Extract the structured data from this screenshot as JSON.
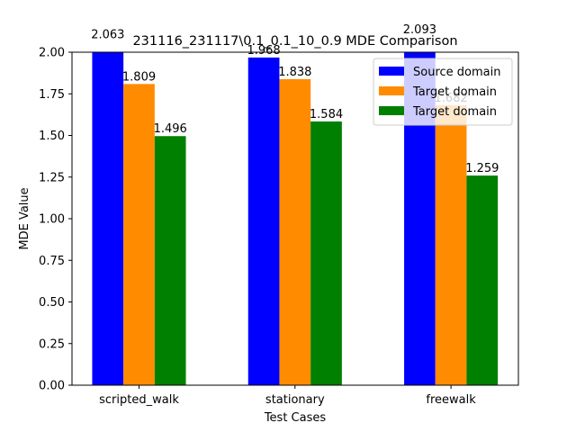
{
  "chart_data": {
    "type": "bar",
    "title": "231116_231117\\0.1_0.1_10_0.9 MDE Comparison",
    "xlabel": "Test Cases",
    "ylabel": "MDE Value",
    "categories": [
      "scripted_walk",
      "stationary",
      "freewalk"
    ],
    "series": [
      {
        "name": "Source domain",
        "color": "#0000ff",
        "values": [
          2.063,
          1.968,
          2.093
        ],
        "labels": [
          "2.063",
          "1.968",
          "2.093"
        ]
      },
      {
        "name": "Target domain",
        "color": "#ff8c00",
        "values": [
          1.809,
          1.838,
          1.682
        ],
        "labels": [
          "1.809",
          "1.838",
          "1.682"
        ]
      },
      {
        "name": "Target domain",
        "color": "#008000",
        "values": [
          1.496,
          1.584,
          1.259
        ],
        "labels": [
          "1.496",
          "1.584",
          "1.259"
        ]
      }
    ],
    "ylim": [
      0,
      2.0
    ],
    "yticks": [
      "0.00",
      "0.25",
      "0.50",
      "0.75",
      "1.00",
      "1.25",
      "1.50",
      "1.75",
      "2.00"
    ],
    "grid": false,
    "legend_position": "top-right"
  }
}
